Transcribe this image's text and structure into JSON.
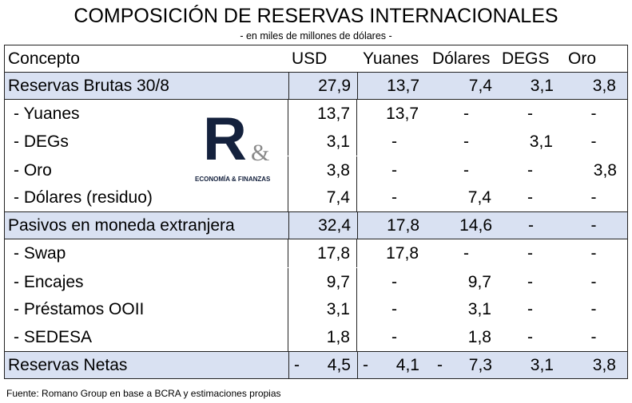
{
  "title": "COMPOSICIÓN DE RESERVAS INTERNACIONALES",
  "subtitle": "- en miles de millones de dólares -",
  "headers": [
    "Concepto",
    "USD",
    "Yuanes",
    "Dólares",
    "DEGS",
    "Oro"
  ],
  "rows": [
    {
      "type": "shaded",
      "cells": [
        "Reservas Brutas 30/8",
        "27,9",
        "13,7",
        "7,4",
        "3,1",
        "3,8"
      ]
    },
    {
      "type": "sub",
      "cells": [
        "- Yuanes",
        "13,7",
        "13,7",
        "-",
        "-",
        "-"
      ]
    },
    {
      "type": "sub",
      "cells": [
        "- DEGs",
        "3,1",
        "-",
        "-",
        "3,1",
        "-"
      ]
    },
    {
      "type": "sub",
      "cells": [
        "- Oro",
        "3,8",
        "-",
        "-",
        "-",
        "3,8"
      ]
    },
    {
      "type": "sub",
      "cells": [
        "- Dólares (residuo)",
        "7,4",
        "-",
        "7,4",
        "-",
        "-"
      ]
    },
    {
      "type": "shaded",
      "cells": [
        "Pasivos en moneda extranjera",
        "32,4",
        "17,8",
        "14,6",
        "-",
        "-"
      ]
    },
    {
      "type": "sub",
      "cells": [
        "- Swap",
        "17,8",
        "17,8",
        "-",
        "-",
        "-"
      ]
    },
    {
      "type": "sub",
      "cells": [
        "- Encajes",
        "9,7",
        "-",
        "9,7",
        "-",
        "-"
      ]
    },
    {
      "type": "sub",
      "cells": [
        "- Préstamos OOII",
        "3,1",
        "-",
        "3,1",
        "-",
        "-"
      ]
    },
    {
      "type": "sub",
      "cells": [
        "- SEDESA",
        "1,8",
        "-",
        "1,8",
        "-",
        "-"
      ]
    },
    {
      "type": "shaded",
      "cells": [
        "Reservas Netas",
        "- 4,5",
        "- 4,1",
        "- 7,3",
        "3,1",
        "3,8"
      ]
    }
  ],
  "logo": {
    "mark": "R",
    "amp": "&",
    "text": "ECONOMÍA & FINANZAS"
  },
  "footnote": "Fuente: Romano Group en base a BCRA y estimaciones propias"
}
